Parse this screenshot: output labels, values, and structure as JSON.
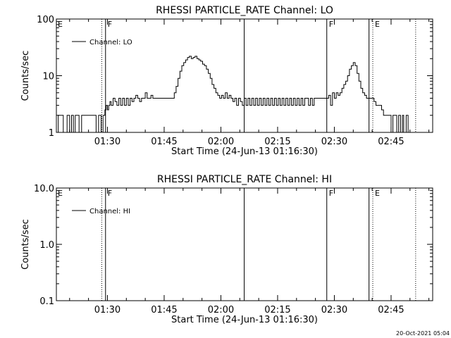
{
  "footer_timestamp": "20-Oct-2021 05:04",
  "chart_data": [
    {
      "type": "line",
      "title": "RHESSI PARTICLE_RATE Channel: LO",
      "xlabel": "Start Time (24-Jun-13 01:16:30)",
      "ylabel": "Counts/sec",
      "y_scale": "log",
      "ylim": [
        1,
        100
      ],
      "y_ticks": [
        {
          "v": 1,
          "label": "1"
        },
        {
          "v": 10,
          "label": "10"
        },
        {
          "v": 100,
          "label": "100"
        }
      ],
      "xlim": [
        "01:16:30",
        "02:56:00"
      ],
      "x_ticks": [
        "01:30",
        "01:45",
        "02:00",
        "02:15",
        "02:30",
        "02:45"
      ],
      "legend": {
        "position": "top-left",
        "label": "Channel: LO"
      },
      "markers": [
        {
          "time": "01:28:30",
          "style": "dotted",
          "label": ""
        },
        {
          "time": "01:29:30",
          "style": "solid",
          "label": "F"
        },
        {
          "time": "02:06:10",
          "style": "solid",
          "label": ""
        },
        {
          "time": "02:28:00",
          "style": "solid",
          "label": "F"
        },
        {
          "time": "02:39:10",
          "style": "solid",
          "label": ""
        },
        {
          "time": "02:40:10",
          "style": "dotted",
          "label": "E"
        },
        {
          "time": "02:51:30",
          "style": "dotted",
          "label": ""
        }
      ],
      "edge_labels": [
        {
          "side": "left",
          "label": "E"
        }
      ],
      "series": [
        {
          "label": "Channel: LO",
          "points": [
            [
              "01:16:30",
              1
            ],
            [
              "01:17:00",
              2
            ],
            [
              "01:18:00",
              2
            ],
            [
              "01:18:20",
              1
            ],
            [
              "01:19:00",
              1
            ],
            [
              "01:19:20",
              2
            ],
            [
              "01:20:00",
              1
            ],
            [
              "01:20:30",
              2
            ],
            [
              "01:21:00",
              1
            ],
            [
              "01:21:30",
              2
            ],
            [
              "01:22:30",
              1
            ],
            [
              "01:23:10",
              2
            ],
            [
              "01:24:00",
              2
            ],
            [
              "01:25:00",
              2
            ],
            [
              "01:26:00",
              2
            ],
            [
              "01:27:00",
              1
            ],
            [
              "01:27:40",
              2
            ],
            [
              "01:28:20",
              1
            ],
            [
              "01:28:50",
              2
            ],
            [
              "01:29:20",
              2.5
            ],
            [
              "01:29:40",
              3
            ],
            [
              "01:30:00",
              2.5
            ],
            [
              "01:30:20",
              3
            ],
            [
              "01:30:40",
              3.5
            ],
            [
              "01:31:00",
              3
            ],
            [
              "01:31:30",
              4
            ],
            [
              "01:32:00",
              3.5
            ],
            [
              "01:32:30",
              3
            ],
            [
              "01:33:00",
              4
            ],
            [
              "01:33:30",
              3
            ],
            [
              "01:34:00",
              4
            ],
            [
              "01:34:30",
              3
            ],
            [
              "01:35:00",
              4
            ],
            [
              "01:35:30",
              3
            ],
            [
              "01:36:00",
              4
            ],
            [
              "01:36:30",
              3.5
            ],
            [
              "01:37:00",
              4
            ],
            [
              "01:37:30",
              4.5
            ],
            [
              "01:38:00",
              4
            ],
            [
              "01:38:30",
              3.5
            ],
            [
              "01:39:00",
              4
            ],
            [
              "01:39:30",
              4
            ],
            [
              "01:40:00",
              5
            ],
            [
              "01:40:30",
              4
            ],
            [
              "01:41:00",
              4
            ],
            [
              "01:41:30",
              4.5
            ],
            [
              "01:42:00",
              4
            ],
            [
              "01:43:00",
              4
            ],
            [
              "01:44:00",
              4
            ],
            [
              "01:45:00",
              4
            ],
            [
              "01:46:00",
              4
            ],
            [
              "01:47:00",
              4
            ],
            [
              "01:47:40",
              5
            ],
            [
              "01:48:10",
              6.5
            ],
            [
              "01:48:40",
              9
            ],
            [
              "01:49:10",
              12
            ],
            [
              "01:49:40",
              15
            ],
            [
              "01:50:10",
              17
            ],
            [
              "01:50:40",
              19
            ],
            [
              "01:51:10",
              21
            ],
            [
              "01:51:40",
              22
            ],
            [
              "01:52:10",
              20
            ],
            [
              "01:52:40",
              21
            ],
            [
              "01:53:10",
              22
            ],
            [
              "01:53:40",
              20
            ],
            [
              "01:54:10",
              19
            ],
            [
              "01:54:40",
              18
            ],
            [
              "01:55:10",
              16
            ],
            [
              "01:55:40",
              15
            ],
            [
              "01:56:10",
              13
            ],
            [
              "01:56:40",
              11
            ],
            [
              "01:57:10",
              9
            ],
            [
              "01:57:40",
              7
            ],
            [
              "01:58:10",
              6
            ],
            [
              "01:58:40",
              5
            ],
            [
              "01:59:10",
              4.5
            ],
            [
              "01:59:40",
              4
            ],
            [
              "02:00:10",
              4.5
            ],
            [
              "02:00:40",
              4
            ],
            [
              "02:01:10",
              5
            ],
            [
              "02:01:40",
              4
            ],
            [
              "02:02:10",
              4.5
            ],
            [
              "02:02:40",
              4
            ],
            [
              "02:03:10",
              3.5
            ],
            [
              "02:03:40",
              4
            ],
            [
              "02:04:10",
              3
            ],
            [
              "02:04:40",
              4
            ],
            [
              "02:05:10",
              3.5
            ],
            [
              "02:05:40",
              3
            ],
            [
              "02:06:10",
              4
            ],
            [
              "02:06:40",
              3
            ],
            [
              "02:07:10",
              4
            ],
            [
              "02:07:40",
              3
            ],
            [
              "02:08:10",
              4
            ],
            [
              "02:08:40",
              3
            ],
            [
              "02:09:10",
              4
            ],
            [
              "02:09:40",
              3
            ],
            [
              "02:10:10",
              4
            ],
            [
              "02:10:40",
              3
            ],
            [
              "02:11:10",
              4
            ],
            [
              "02:11:40",
              3
            ],
            [
              "02:12:10",
              4
            ],
            [
              "02:12:40",
              3
            ],
            [
              "02:13:10",
              4
            ],
            [
              "02:13:40",
              3
            ],
            [
              "02:14:10",
              4
            ],
            [
              "02:14:40",
              3
            ],
            [
              "02:15:10",
              4
            ],
            [
              "02:15:40",
              3
            ],
            [
              "02:16:10",
              4
            ],
            [
              "02:16:40",
              3
            ],
            [
              "02:17:10",
              4
            ],
            [
              "02:17:40",
              3
            ],
            [
              "02:18:10",
              4
            ],
            [
              "02:18:40",
              3
            ],
            [
              "02:19:10",
              4
            ],
            [
              "02:19:40",
              3
            ],
            [
              "02:20:10",
              4
            ],
            [
              "02:20:40",
              3
            ],
            [
              "02:21:10",
              4
            ],
            [
              "02:21:40",
              3
            ],
            [
              "02:22:10",
              4
            ],
            [
              "02:22:40",
              4
            ],
            [
              "02:23:10",
              3
            ],
            [
              "02:23:40",
              4
            ],
            [
              "02:24:10",
              3
            ],
            [
              "02:24:40",
              4
            ],
            [
              "02:25:10",
              4
            ],
            [
              "02:26:00",
              4
            ],
            [
              "02:27:00",
              4
            ],
            [
              "02:28:00",
              4
            ],
            [
              "02:28:30",
              4.5
            ],
            [
              "02:29:00",
              3
            ],
            [
              "02:29:30",
              5
            ],
            [
              "02:30:00",
              4
            ],
            [
              "02:30:30",
              5
            ],
            [
              "02:31:00",
              4.5
            ],
            [
              "02:31:30",
              5
            ],
            [
              "02:32:00",
              6
            ],
            [
              "02:32:30",
              7
            ],
            [
              "02:33:00",
              8
            ],
            [
              "02:33:30",
              10
            ],
            [
              "02:34:00",
              13
            ],
            [
              "02:34:30",
              15
            ],
            [
              "02:35:00",
              17
            ],
            [
              "02:35:30",
              15
            ],
            [
              "02:36:00",
              11
            ],
            [
              "02:36:30",
              8
            ],
            [
              "02:37:00",
              6
            ],
            [
              "02:37:30",
              5
            ],
            [
              "02:38:00",
              4.5
            ],
            [
              "02:38:30",
              4
            ],
            [
              "02:39:00",
              4
            ],
            [
              "02:39:30",
              4
            ],
            [
              "02:40:00",
              4
            ],
            [
              "02:40:30",
              3.5
            ],
            [
              "02:41:00",
              3
            ],
            [
              "02:41:30",
              3
            ],
            [
              "02:42:00",
              3
            ],
            [
              "02:42:30",
              2.5
            ],
            [
              "02:43:00",
              2
            ],
            [
              "02:43:30",
              2
            ],
            [
              "02:44:00",
              2
            ],
            [
              "02:44:30",
              2
            ],
            [
              "02:45:00",
              1
            ],
            [
              "02:45:30",
              2
            ],
            [
              "02:46:00",
              2
            ],
            [
              "02:46:30",
              1
            ],
            [
              "02:47:00",
              2
            ],
            [
              "02:47:30",
              1
            ],
            [
              "02:48:00",
              2
            ],
            [
              "02:48:20",
              1
            ],
            [
              "02:48:40",
              1
            ],
            [
              "02:49:00",
              2
            ],
            [
              "02:49:30",
              1
            ]
          ]
        }
      ]
    },
    {
      "type": "line",
      "title": "RHESSI PARTICLE_RATE Channel: HI",
      "xlabel": "Start Time (24-Jun-13 01:16:30)",
      "ylabel": "Counts/sec",
      "y_scale": "log",
      "ylim": [
        0.1,
        10
      ],
      "y_ticks": [
        {
          "v": 0.1,
          "label": "0.1"
        },
        {
          "v": 1,
          "label": "1.0"
        },
        {
          "v": 10,
          "label": "10.0"
        }
      ],
      "xlim": [
        "01:16:30",
        "02:56:00"
      ],
      "x_ticks": [
        "01:30",
        "01:45",
        "02:00",
        "02:15",
        "02:30",
        "02:45"
      ],
      "legend": {
        "position": "top-left",
        "label": "Channel: HI"
      },
      "markers": [
        {
          "time": "01:28:30",
          "style": "dotted",
          "label": ""
        },
        {
          "time": "01:29:30",
          "style": "solid",
          "label": "F"
        },
        {
          "time": "02:06:10",
          "style": "solid",
          "label": ""
        },
        {
          "time": "02:28:00",
          "style": "solid",
          "label": "F"
        },
        {
          "time": "02:39:10",
          "style": "solid",
          "label": ""
        },
        {
          "time": "02:40:10",
          "style": "dotted",
          "label": "E"
        },
        {
          "time": "02:51:30",
          "style": "dotted",
          "label": ""
        }
      ],
      "edge_labels": [
        {
          "side": "left",
          "label": "E"
        }
      ],
      "series": [
        {
          "label": "Channel: HI",
          "points": []
        }
      ]
    }
  ]
}
